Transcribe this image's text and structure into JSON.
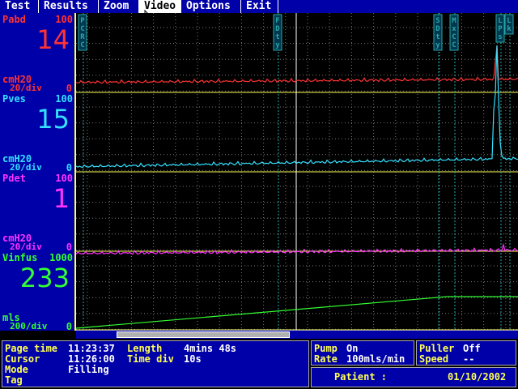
{
  "menu": {
    "items": [
      {
        "label": "Test"
      },
      {
        "label": "Results"
      },
      {
        "label": "Zoom"
      },
      {
        "label": "Video"
      },
      {
        "label": "Options"
      },
      {
        "label": "Exit"
      }
    ],
    "active": "Video"
  },
  "channels": [
    {
      "name": "Pabd",
      "max": "100",
      "value": "14",
      "unit": "cmH20",
      "div": "20/div",
      "zero": "0",
      "color": "#ff3333"
    },
    {
      "name": "Pves",
      "max": "100",
      "value": "15",
      "unit": "cmH20",
      "div": "20/div",
      "zero": "0",
      "color": "#33e0ff"
    },
    {
      "name": "Pdet",
      "max": "100",
      "value": "1",
      "unit": "cmH20",
      "div": "20/div",
      "zero": "0",
      "color": "#ff33ff"
    },
    {
      "name": "Vinfus",
      "max": "1000",
      "value": "233",
      "unit": "mls",
      "div": "200/div",
      "zero": "0",
      "color": "#33ff33"
    }
  ],
  "event_markers": [
    {
      "label": "PCRC"
    },
    {
      "label": "FDty"
    },
    {
      "label": "SDty"
    },
    {
      "label": "MxCC"
    },
    {
      "label": "LPs"
    },
    {
      "label": "Lk"
    }
  ],
  "status": {
    "page_time_label": "Page time",
    "page_time": "11:23:37",
    "length_label": "Length",
    "length": "4mins 48s",
    "cursor_label": "Cursor",
    "cursor": "11:26:00",
    "time_div_label": "Time div",
    "time_div": "10s",
    "mode_label": "Mode",
    "mode": "Filling",
    "tag_label": "Tag",
    "pump_label": "Pump",
    "pump": "On",
    "rate_label": "Rate",
    "rate": "100mls/min",
    "puller_label": "Puller",
    "puller": "Off",
    "speed_label": "Speed",
    "speed": "--",
    "patient_label": "Patient :",
    "date": "01/10/2002"
  },
  "trace_data": {
    "x_unit": "page fraction",
    "vinfus": {
      "start": 0,
      "end_fraction": 0.84,
      "end_value": 233,
      "then": "flat"
    },
    "pabd_baseline": 14,
    "pves_baseline": 15,
    "pdet_baseline": 1
  }
}
